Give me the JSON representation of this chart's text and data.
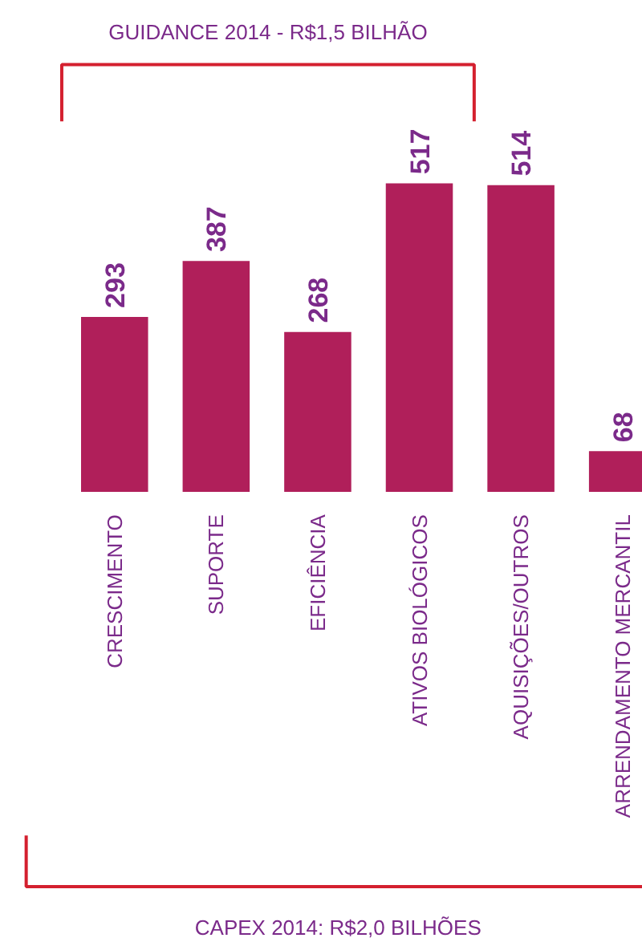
{
  "chart_data": {
    "type": "bar",
    "categories": [
      "CRESCIMENTO",
      "SUPORTE",
      "EFICIÊNCIA",
      "ATIVOS BIOLÓGICOS",
      "AQUISIÇÕES/OUTROS",
      "ARRENDAMENTO MERCANTIL"
    ],
    "values": [
      293,
      387,
      268,
      517,
      514,
      68
    ],
    "color": "#b01f5a",
    "data_labels": true,
    "annotations": [
      "GUIDANCE 2014 - R$1,5 BILHÃO",
      "CAPEX 2014: R$2,0 BILHÕES"
    ],
    "grid": false
  }
}
